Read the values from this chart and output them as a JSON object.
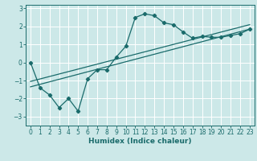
{
  "title": "",
  "xlabel": "Humidex (Indice chaleur)",
  "xlim": [
    -0.5,
    23.5
  ],
  "ylim": [
    -3.5,
    3.2
  ],
  "yticks": [
    -3,
    -2,
    -1,
    0,
    1,
    2,
    3
  ],
  "xticks": [
    0,
    1,
    2,
    3,
    4,
    5,
    6,
    7,
    8,
    9,
    10,
    11,
    12,
    13,
    14,
    15,
    16,
    17,
    18,
    19,
    20,
    21,
    22,
    23
  ],
  "bg_color": "#cce8e8",
  "grid_color": "#ffffff",
  "line_color": "#1a6b6b",
  "line1_x": [
    0,
    1,
    2,
    3,
    4,
    5,
    6,
    7,
    8,
    9,
    10,
    11,
    12,
    13,
    14,
    15,
    16,
    17,
    18,
    19,
    20,
    21,
    22,
    23
  ],
  "line1_y": [
    0.0,
    -1.4,
    -1.8,
    -2.5,
    -2.0,
    -2.7,
    -0.9,
    -0.4,
    -0.4,
    0.3,
    0.9,
    2.5,
    2.7,
    2.6,
    2.2,
    2.1,
    1.7,
    1.35,
    1.45,
    1.4,
    1.4,
    1.5,
    1.6,
    1.85
  ],
  "line2_x": [
    0,
    23
  ],
  "line2_y": [
    -1.35,
    1.85
  ],
  "line3_x": [
    0,
    23
  ],
  "line3_y": [
    -1.05,
    2.1
  ],
  "marker": "D",
  "markersize": 2.2,
  "linewidth": 0.9,
  "xlabel_fontsize": 6.5,
  "tick_labelsize": 5.5
}
